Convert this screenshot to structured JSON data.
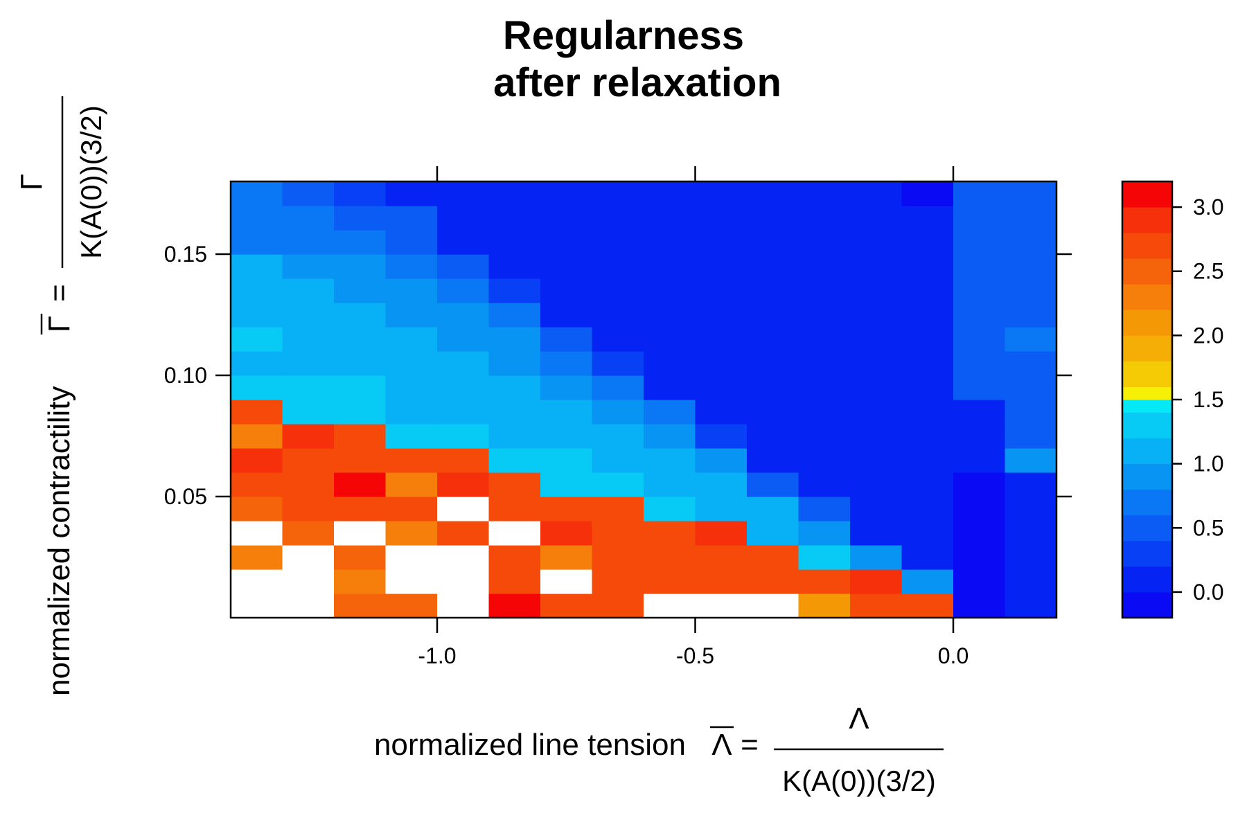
{
  "chart_data": {
    "type": "heatmap",
    "title": [
      "Regularness",
      "after relaxation"
    ],
    "xlabel": {
      "prefix": "normalized line tension",
      "symbol": "Λ",
      "numerator": "Λ",
      "denominator": "K(A(0))(3/2)"
    },
    "ylabel": {
      "prefix": "normalized contractility",
      "symbol": "Γ",
      "numerator": "Γ",
      "denominator": "K(A(0))(3/2)"
    },
    "x_ticks": [
      -1.0,
      -0.5,
      0.0
    ],
    "x_tick_labels": [
      "-1.0",
      "-0.5",
      "0.0"
    ],
    "y_ticks": [
      0.05,
      0.1,
      0.15
    ],
    "y_tick_labels": [
      "0.05",
      "0.10",
      "0.15"
    ],
    "xlim": [
      -1.4,
      0.2
    ],
    "ylim": [
      0.0,
      0.18
    ],
    "x": [
      -1.35,
      -1.25,
      -1.15,
      -1.05,
      -0.95,
      -0.85,
      -0.75,
      -0.65,
      -0.55,
      -0.45,
      -0.35,
      -0.25,
      -0.15,
      -0.05,
      0.05,
      0.15
    ],
    "y": [
      0.005,
      0.015,
      0.025,
      0.035,
      0.045,
      0.055,
      0.065,
      0.075,
      0.085,
      0.095,
      0.105,
      0.115,
      0.125,
      0.135,
      0.145,
      0.155,
      0.165,
      0.175
    ],
    "values": [
      [
        null,
        null,
        2.5,
        2.5,
        null,
        3.1,
        2.6,
        2.6,
        null,
        null,
        null,
        2.0,
        2.7,
        2.7,
        -0.05,
        0.1
      ],
      [
        null,
        null,
        2.3,
        null,
        null,
        2.6,
        null,
        2.6,
        2.6,
        2.7,
        2.6,
        2.7,
        2.9,
        0.9,
        -0.05,
        0.1
      ],
      [
        2.3,
        null,
        2.5,
        null,
        null,
        2.7,
        2.3,
        2.6,
        2.6,
        2.6,
        2.6,
        1.2,
        0.9,
        0.1,
        -0.05,
        0.1
      ],
      [
        null,
        2.5,
        null,
        2.3,
        2.6,
        null,
        2.9,
        2.6,
        2.7,
        2.9,
        1.0,
        0.9,
        0.1,
        0.1,
        -0.05,
        0.1
      ],
      [
        2.5,
        2.7,
        2.6,
        2.7,
        null,
        2.7,
        2.7,
        2.7,
        1.3,
        1.0,
        1.0,
        0.5,
        0.1,
        0.1,
        -0.05,
        0.1
      ],
      [
        2.6,
        2.6,
        3.1,
        2.3,
        2.9,
        2.7,
        1.3,
        1.3,
        1.0,
        1.0,
        0.5,
        0.1,
        0.1,
        0.1,
        -0.05,
        0.1
      ],
      [
        2.8,
        2.6,
        2.7,
        2.7,
        2.6,
        1.3,
        1.3,
        1.0,
        1.0,
        0.8,
        0.1,
        0.1,
        0.1,
        0.1,
        0.1,
        0.8
      ],
      [
        2.3,
        2.9,
        2.7,
        1.3,
        1.3,
        1.0,
        1.0,
        1.0,
        0.8,
        0.3,
        0.1,
        0.1,
        0.1,
        0.1,
        0.1,
        0.5
      ],
      [
        2.6,
        1.3,
        1.3,
        1.0,
        1.0,
        1.0,
        1.0,
        0.8,
        0.6,
        0.1,
        0.1,
        0.1,
        0.1,
        0.1,
        0.1,
        0.5
      ],
      [
        1.3,
        1.3,
        1.3,
        1.0,
        1.0,
        1.0,
        0.8,
        0.6,
        0.1,
        0.1,
        0.1,
        0.1,
        0.1,
        0.1,
        0.5,
        0.5
      ],
      [
        1.0,
        1.0,
        1.0,
        1.0,
        1.0,
        0.8,
        0.6,
        0.3,
        0.1,
        0.1,
        0.1,
        0.1,
        0.1,
        0.1,
        0.5,
        0.5
      ],
      [
        1.3,
        1.0,
        1.0,
        1.0,
        0.8,
        0.8,
        0.4,
        0.1,
        0.1,
        0.1,
        0.1,
        0.1,
        0.1,
        0.1,
        0.5,
        0.7
      ],
      [
        1.0,
        1.0,
        1.0,
        0.8,
        0.8,
        0.6,
        0.1,
        0.1,
        0.1,
        0.1,
        0.1,
        0.1,
        0.1,
        0.1,
        0.5,
        0.5
      ],
      [
        1.0,
        1.0,
        0.8,
        0.8,
        0.6,
        0.3,
        0.1,
        0.1,
        0.1,
        0.1,
        0.1,
        0.1,
        0.1,
        0.1,
        0.5,
        0.5
      ],
      [
        1.0,
        0.8,
        0.8,
        0.6,
        0.4,
        0.1,
        0.1,
        0.1,
        0.1,
        0.1,
        0.1,
        0.1,
        0.1,
        0.1,
        0.5,
        0.5
      ],
      [
        0.7,
        0.7,
        0.6,
        0.4,
        0.1,
        0.1,
        0.1,
        0.1,
        0.1,
        0.1,
        0.1,
        0.1,
        0.1,
        0.1,
        0.5,
        0.5
      ],
      [
        0.7,
        0.7,
        0.5,
        0.4,
        0.1,
        0.1,
        0.1,
        0.1,
        0.1,
        0.1,
        0.1,
        0.1,
        0.1,
        0.1,
        0.5,
        0.5
      ],
      [
        0.6,
        0.5,
        0.3,
        0.1,
        0.1,
        0.1,
        0.1,
        0.1,
        0.1,
        0.1,
        0.1,
        0.1,
        0.1,
        -0.05,
        0.5,
        0.5
      ]
    ],
    "missing_color": "#ffffff",
    "colorbar": {
      "ticks": [
        0.0,
        0.5,
        1.0,
        1.5,
        2.0,
        2.5,
        3.0
      ],
      "tick_labels": [
        "0.0",
        "0.5",
        "1.0",
        "1.5",
        "2.0",
        "2.5",
        "3.0"
      ],
      "breaks": [
        -0.2,
        0.0,
        0.2,
        0.4,
        0.6,
        0.8,
        1.0,
        1.2,
        1.4,
        1.5,
        1.6,
        1.8,
        2.0,
        2.2,
        2.4,
        2.6,
        2.8,
        3.0,
        3.2
      ],
      "colors": [
        "#0a0af5",
        "#0523f2",
        "#0840f5",
        "#0b5cf5",
        "#0a78f5",
        "#0894f2",
        "#08b0f5",
        "#08cbf5",
        "#05e8f5",
        "#f5f005",
        "#f5cb05",
        "#f5ae05",
        "#f59805",
        "#f57f0a",
        "#f5640a",
        "#f54a0a",
        "#f5300a",
        "#f50505"
      ]
    }
  }
}
